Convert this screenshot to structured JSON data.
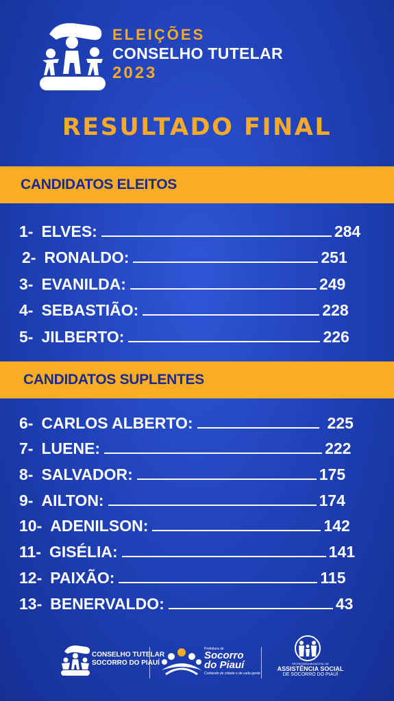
{
  "header": {
    "line1": "ELEIÇÕES",
    "line2": "CONSELHO TUTELAR",
    "line3": "2023"
  },
  "main_title": "RESULTADO FINAL",
  "elected": {
    "heading": "CANDIDATOS ELEITOS",
    "rows": [
      {
        "num": "1-",
        "name": "ELVES:",
        "votes": "284"
      },
      {
        "num": "2-",
        "name": "RONALDO:",
        "votes": "251"
      },
      {
        "num": "3-",
        "name": "EVANILDA:",
        "votes": "249"
      },
      {
        "num": "4-",
        "name": "SEBASTIÃO:",
        "votes": "228"
      },
      {
        "num": "5-",
        "name": "JILBERTO:",
        "votes": "226"
      }
    ]
  },
  "substitutes": {
    "heading": "CANDIDATOS SUPLENTES",
    "rows": [
      {
        "num": "6-",
        "name": "CARLOS ALBERTO:",
        "votes": "225"
      },
      {
        "num": "7-",
        "name": "LUENE:",
        "votes": "222"
      },
      {
        "num": "8-",
        "name": "SALVADOR:",
        "votes": "175"
      },
      {
        "num": "9-",
        "name": "AILTON:",
        "votes": "174"
      },
      {
        "num": "10-",
        "name": "ADENILSON:",
        "votes": "142"
      },
      {
        "num": "11-",
        "name": "GISÉLIA:",
        "votes": "141"
      },
      {
        "num": "12-",
        "name": "PAIXÃO:",
        "votes": "115"
      },
      {
        "num": "13-",
        "name": "BENERVALDO:",
        "votes": "43"
      }
    ]
  },
  "footer": {
    "org1_line1": "CONSELHO TUTELAR",
    "org1_line2": "SOCORRO DO PIAUÍ",
    "org2_small": "Prefeitura de",
    "org2_line1": "Socorro",
    "org2_line2": "do Piauí",
    "org2_slogan": "Cuidando de cidade e de cada gente",
    "org3_small": "SECRETARIA MUNICIPAL DE",
    "org3_line1": "ASSISTÊNCIA SOCIAL",
    "org3_line2": "DE SOCORRO DO PIAUÍ"
  },
  "colors": {
    "background": "#1e3fb4",
    "accent": "#f9ad25",
    "band_text": "#1a2a8f",
    "text": "#ffffff"
  }
}
